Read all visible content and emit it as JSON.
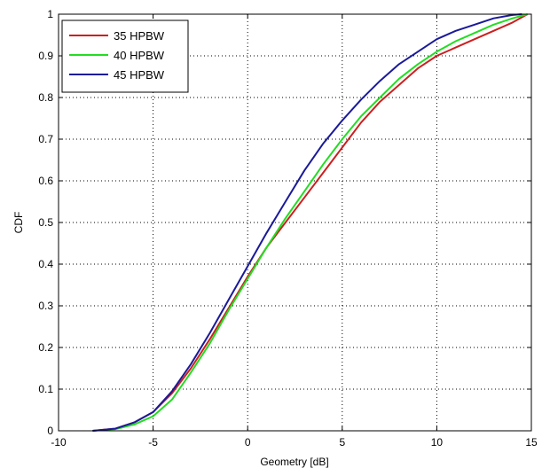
{
  "chart_data": {
    "type": "line",
    "title": "",
    "xlabel": "Geometry [dB]",
    "ylabel": "CDF",
    "xlim": [
      -10,
      15
    ],
    "ylim": [
      0,
      1
    ],
    "xticks": [
      -10,
      -5,
      0,
      5,
      10,
      15
    ],
    "yticks": [
      0,
      0.1,
      0.2,
      0.3,
      0.4,
      0.5,
      0.6,
      0.7,
      0.8,
      0.9,
      1
    ],
    "grid": true,
    "legend_position": "top-left",
    "series": [
      {
        "name": "35 HPBW",
        "color": "#cc1f1f",
        "points": [
          [
            -8.2,
            0
          ],
          [
            -7,
            0.005
          ],
          [
            -6,
            0.02
          ],
          [
            -5,
            0.045
          ],
          [
            -4,
            0.09
          ],
          [
            -3,
            0.15
          ],
          [
            -2,
            0.22
          ],
          [
            -1,
            0.295
          ],
          [
            0,
            0.37
          ],
          [
            1,
            0.44
          ],
          [
            2,
            0.5
          ],
          [
            3,
            0.56
          ],
          [
            4,
            0.62
          ],
          [
            5,
            0.68
          ],
          [
            6,
            0.74
          ],
          [
            7,
            0.79
          ],
          [
            8,
            0.83
          ],
          [
            9,
            0.87
          ],
          [
            10,
            0.9
          ],
          [
            11,
            0.92
          ],
          [
            12,
            0.94
          ],
          [
            13,
            0.96
          ],
          [
            14,
            0.98
          ],
          [
            14.8,
            1
          ]
        ]
      },
      {
        "name": "40 HPBW",
        "color": "#22dd22",
        "points": [
          [
            -8.2,
            0
          ],
          [
            -7,
            0.004
          ],
          [
            -6,
            0.015
          ],
          [
            -5,
            0.035
          ],
          [
            -4,
            0.075
          ],
          [
            -3,
            0.14
          ],
          [
            -2,
            0.21
          ],
          [
            -1,
            0.29
          ],
          [
            0,
            0.365
          ],
          [
            1,
            0.44
          ],
          [
            2,
            0.51
          ],
          [
            3,
            0.575
          ],
          [
            4,
            0.64
          ],
          [
            5,
            0.7
          ],
          [
            6,
            0.755
          ],
          [
            7,
            0.8
          ],
          [
            8,
            0.845
          ],
          [
            9,
            0.88
          ],
          [
            10,
            0.91
          ],
          [
            11,
            0.935
          ],
          [
            12,
            0.955
          ],
          [
            13,
            0.975
          ],
          [
            14,
            0.99
          ],
          [
            14.8,
            1
          ]
        ]
      },
      {
        "name": "45 HPBW",
        "color": "#1a1a99",
        "points": [
          [
            -8.2,
            0
          ],
          [
            -7,
            0.005
          ],
          [
            -6,
            0.02
          ],
          [
            -5,
            0.045
          ],
          [
            -4,
            0.095
          ],
          [
            -3,
            0.16
          ],
          [
            -2,
            0.235
          ],
          [
            -1,
            0.315
          ],
          [
            0,
            0.395
          ],
          [
            1,
            0.475
          ],
          [
            2,
            0.55
          ],
          [
            3,
            0.625
          ],
          [
            4,
            0.69
          ],
          [
            5,
            0.745
          ],
          [
            6,
            0.795
          ],
          [
            7,
            0.84
          ],
          [
            8,
            0.88
          ],
          [
            9,
            0.91
          ],
          [
            10,
            0.94
          ],
          [
            11,
            0.96
          ],
          [
            12,
            0.975
          ],
          [
            13,
            0.99
          ],
          [
            14,
            0.998
          ],
          [
            14.5,
            1
          ]
        ]
      }
    ]
  }
}
